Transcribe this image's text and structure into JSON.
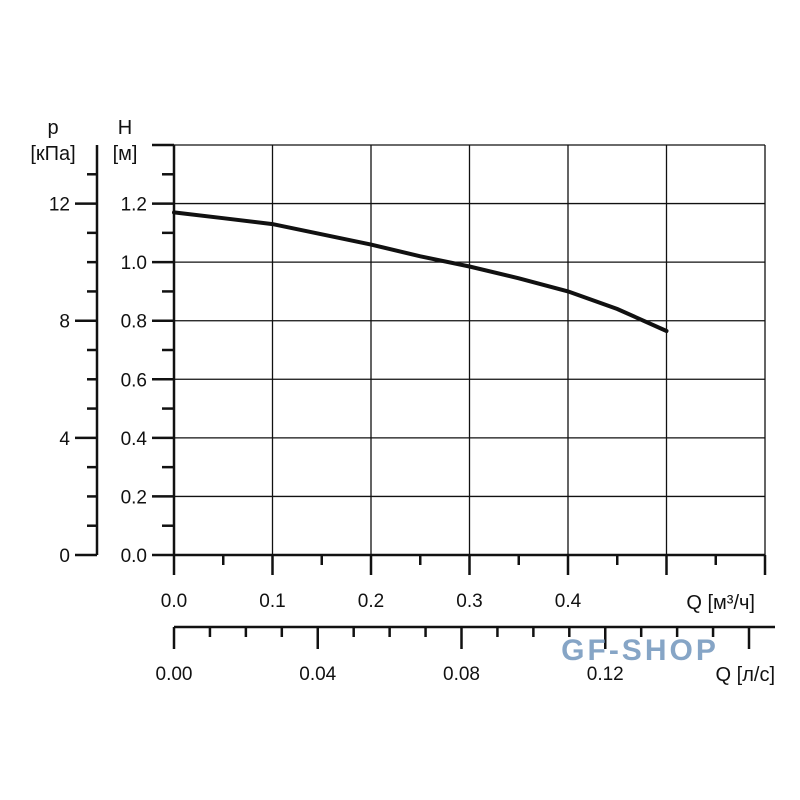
{
  "chart_data": {
    "type": "line",
    "title": "",
    "xlabel": "Q [м³/ч]",
    "ylabel_h": "H",
    "ylabel_h_unit": "[м]",
    "ylabel_p": "p",
    "ylabel_p_unit": "[кПа]",
    "x2label": "Q [л/с]",
    "xlim": [
      0,
      0.6
    ],
    "ylim": [
      0,
      1.4
    ],
    "x_ticks": [
      "0.0",
      "0.1",
      "0.2",
      "0.3",
      "0.4"
    ],
    "y_ticks": [
      "0.0",
      "0.2",
      "0.4",
      "0.6",
      "0.8",
      "1.0",
      "1.2"
    ],
    "p_ticks": [
      "0",
      "4",
      "8",
      "12"
    ],
    "p_lim": [
      0,
      14
    ],
    "x2_ticks": [
      "0.00",
      "0.04",
      "0.08",
      "0.12"
    ],
    "x2_lim": [
      0,
      0.167
    ],
    "grid": true,
    "series": [
      {
        "x": [
          0,
          0.05,
          0.1,
          0.15,
          0.2,
          0.25,
          0.3,
          0.35,
          0.4,
          0.45,
          0.5
        ],
        "y": [
          1.17,
          1.15,
          1.13,
          1.095,
          1.06,
          1.02,
          0.985,
          0.945,
          0.9,
          0.84,
          0.765
        ]
      }
    ],
    "colors": {
      "line": "#111111",
      "grid": "#222222"
    }
  },
  "watermark": "GF-SHOP",
  "watermark_color": "#7a9cc0"
}
